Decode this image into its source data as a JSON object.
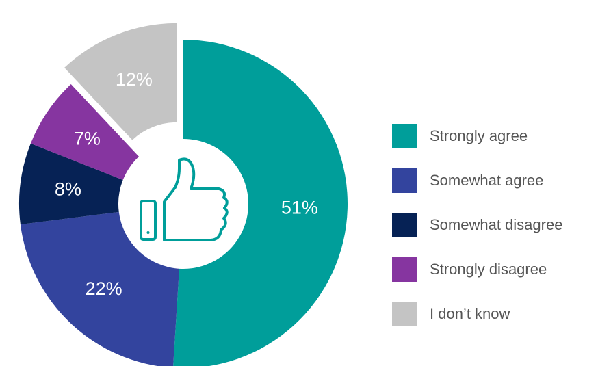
{
  "chart_data": {
    "type": "pie",
    "variant": "donut",
    "title": "",
    "center_icon": "thumbs-up-icon",
    "exploded_slice": "I don’t know",
    "legend_position": "right",
    "slices": [
      {
        "label": "Strongly agree",
        "value": 51,
        "display": "51%",
        "color": "#009E9A"
      },
      {
        "label": "Somewhat agree",
        "value": 22,
        "display": "22%",
        "color": "#33449E"
      },
      {
        "label": "Somewhat disagree",
        "value": 8,
        "display": "8%",
        "color": "#062255"
      },
      {
        "label": "Strongly disagree",
        "value": 7,
        "display": "7%",
        "color": "#8635A0"
      },
      {
        "label": "I don’t know",
        "value": 12,
        "display": "12%",
        "color": "#C4C4C4"
      }
    ]
  },
  "legend": {
    "items": [
      {
        "label": "Strongly agree",
        "color": "#009E9A"
      },
      {
        "label": "Somewhat agree",
        "color": "#33449E"
      },
      {
        "label": "Somewhat disagree",
        "color": "#062255"
      },
      {
        "label": "Strongly disagree",
        "color": "#8635A0"
      },
      {
        "label": "I don’t know",
        "color": "#C4C4C4"
      }
    ]
  }
}
